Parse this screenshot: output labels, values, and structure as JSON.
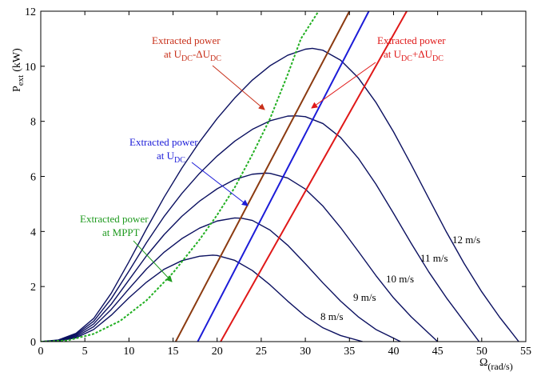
{
  "chart_data": {
    "type": "line",
    "xlabel_main": "Ω",
    "xlabel_sub": "(rad/s)",
    "ylabel_main": "P",
    "ylabel_sub": "ext",
    "ylabel_unit": "(kW)",
    "xlim": [
      0,
      55
    ],
    "ylim": [
      0,
      12
    ],
    "xticks": [
      "0",
      "5",
      "10",
      "15",
      "20",
      "25",
      "30",
      "35",
      "40",
      "45",
      "50",
      "55"
    ],
    "yticks": [
      "0",
      "2",
      "4",
      "6",
      "8",
      "10",
      "12"
    ],
    "grid": false,
    "colors": {
      "wind_curves": "#0b1060",
      "mppt": "#22b022",
      "udc_minus": "#8b3a10",
      "udc": "#1c1cd8",
      "udc_plus": "#e01818",
      "ann_udc_minus": "#c8301a",
      "ann_udc": "#1c1cd8",
      "ann_udc_plus": "#e01818",
      "ann_mppt": "#1f9a1f"
    },
    "power_curves": [
      {
        "label": "8 m/s",
        "x": [
          0,
          2,
          4,
          6,
          8,
          10,
          12,
          14,
          16,
          18,
          19.5,
          20,
          22,
          24,
          26,
          28,
          30,
          32,
          34,
          36.5
        ],
        "y": [
          0,
          0.02,
          0.14,
          0.44,
          0.96,
          1.59,
          2.16,
          2.63,
          2.94,
          3.1,
          3.14,
          3.13,
          2.95,
          2.58,
          2.06,
          1.47,
          0.92,
          0.5,
          0.22,
          0
        ]
      },
      {
        "label": "9 m/s",
        "x": [
          0,
          2,
          4,
          6,
          8,
          10,
          12,
          14,
          16,
          18,
          20,
          22,
          22.8,
          24,
          26,
          28,
          30,
          32,
          34,
          36,
          38,
          40.8
        ],
        "y": [
          0,
          0.03,
          0.18,
          0.54,
          1.17,
          1.92,
          2.64,
          3.25,
          3.74,
          4.12,
          4.38,
          4.49,
          4.48,
          4.4,
          4.05,
          3.5,
          2.83,
          2.13,
          1.47,
          0.9,
          0.44,
          0
        ]
      },
      {
        "label": "10 m/s",
        "x": [
          0,
          2,
          4,
          6,
          8,
          10,
          12,
          14,
          16,
          18,
          20,
          22,
          24,
          25.5,
          26,
          28,
          30,
          32,
          34,
          36,
          38,
          40,
          42,
          45
        ],
        "y": [
          0,
          0.04,
          0.22,
          0.64,
          1.36,
          2.24,
          3.12,
          3.89,
          4.55,
          5.1,
          5.55,
          5.89,
          6.08,
          6.12,
          6.11,
          5.94,
          5.54,
          4.92,
          4.14,
          3.28,
          2.4,
          1.59,
          0.9,
          0
        ]
      },
      {
        "label": "11 m/s",
        "x": [
          0,
          2,
          4,
          6,
          8,
          10,
          12,
          14,
          16,
          18,
          20,
          22,
          24,
          26,
          28,
          29,
          30,
          32,
          34,
          36,
          38,
          40,
          42,
          44,
          46,
          49.7
        ],
        "y": [
          0,
          0.05,
          0.26,
          0.74,
          1.56,
          2.56,
          3.6,
          4.55,
          5.38,
          6.11,
          6.74,
          7.28,
          7.71,
          8.02,
          8.19,
          8.2,
          8.17,
          7.92,
          7.41,
          6.66,
          5.72,
          4.66,
          3.57,
          2.53,
          1.59,
          0
        ]
      },
      {
        "label": "12 m/s",
        "x": [
          0,
          2,
          4,
          6,
          8,
          10,
          12,
          14,
          16,
          18,
          20,
          22,
          24,
          26,
          28,
          30,
          30.8,
          32,
          34,
          36,
          38,
          40,
          42,
          44,
          46,
          48,
          50,
          52,
          54.2
        ],
        "y": [
          0,
          0.06,
          0.3,
          0.84,
          1.76,
          2.9,
          4.1,
          5.25,
          6.3,
          7.25,
          8.1,
          8.85,
          9.5,
          10.02,
          10.4,
          10.62,
          10.65,
          10.58,
          10.22,
          9.58,
          8.69,
          7.62,
          6.43,
          5.2,
          3.98,
          2.84,
          1.81,
          0.9,
          0
        ]
      }
    ],
    "mppt_curve": {
      "x": [
        0,
        3,
        6,
        9,
        12,
        15,
        18,
        20,
        22,
        24,
        26,
        28,
        29.5,
        31.5
      ],
      "y": [
        0,
        0.04,
        0.28,
        0.75,
        1.5,
        2.5,
        3.7,
        4.6,
        5.6,
        6.8,
        8.1,
        9.7,
        11.0,
        12.0
      ]
    },
    "droop_lines": [
      {
        "key": "udc_minus",
        "x": [
          15.3,
          35.0
        ],
        "y": [
          0,
          12
        ]
      },
      {
        "key": "udc",
        "x": [
          17.8,
          37.2
        ],
        "y": [
          0,
          12
        ]
      },
      {
        "key": "udc_plus",
        "x": [
          20.4,
          41.5
        ],
        "y": [
          0,
          12
        ]
      }
    ],
    "annotations": {
      "udc_minus": {
        "line1": "Extracted power",
        "line2_prefix": "at U",
        "sub1": "DC",
        "mid": "-ΔU",
        "sub2": "DC"
      },
      "udc_plus": {
        "line1": "Extracted power",
        "line2_prefix": "at U",
        "sub1": "DC",
        "mid": "+ΔU",
        "sub2": "DC"
      },
      "udc": {
        "line1": "Extracted power",
        "line2_prefix": "at U",
        "sub1": "DC"
      },
      "mppt": {
        "line1": "Extracted power",
        "line2": "at MPPT"
      }
    }
  }
}
